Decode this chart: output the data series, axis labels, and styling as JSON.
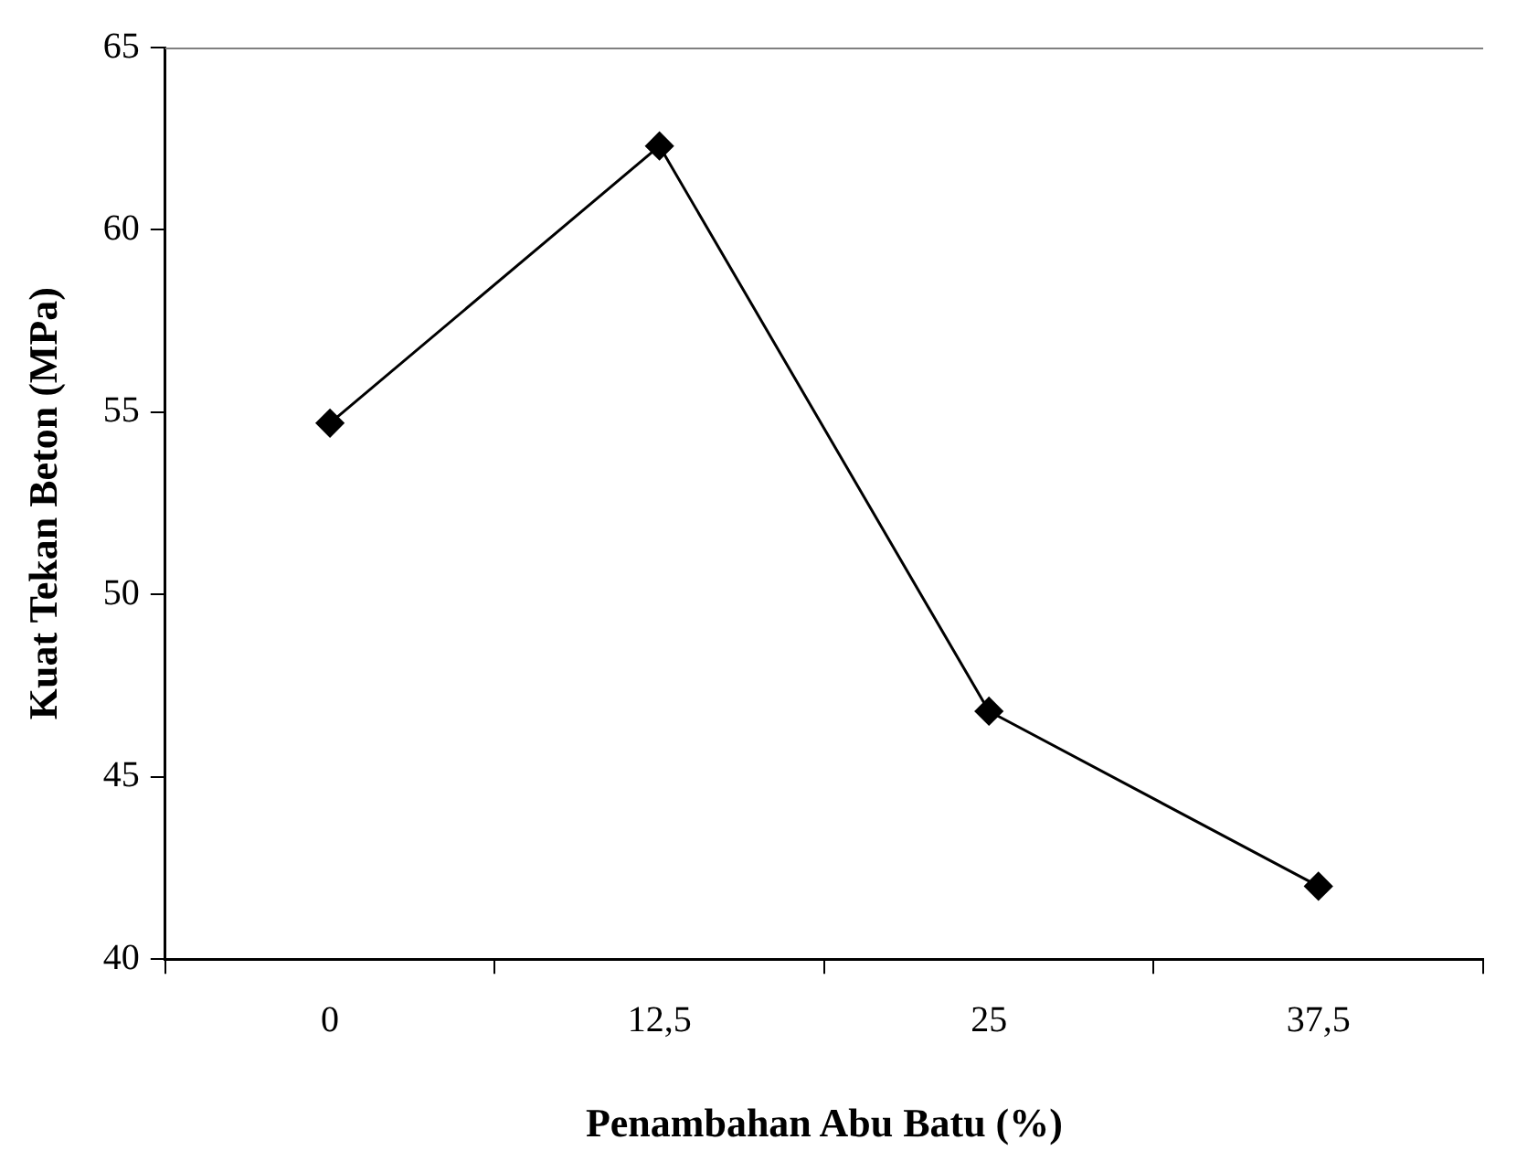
{
  "chart_data": {
    "type": "line",
    "xlabel": "Penambahan Abu Batu (%)",
    "ylabel": "Kuat Tekan Beton (MPa)",
    "categories": [
      "0",
      "12,5",
      "25",
      "37,5"
    ],
    "series": [
      {
        "color": "#000000",
        "values": [
          54.7,
          62.3,
          46.8,
          42.0
        ]
      }
    ],
    "ylim": [
      40,
      65
    ],
    "yticks": [
      40,
      45,
      50,
      55,
      60,
      65
    ],
    "marker": "diamond",
    "line_style": "solid",
    "legend": false,
    "grid": false
  }
}
